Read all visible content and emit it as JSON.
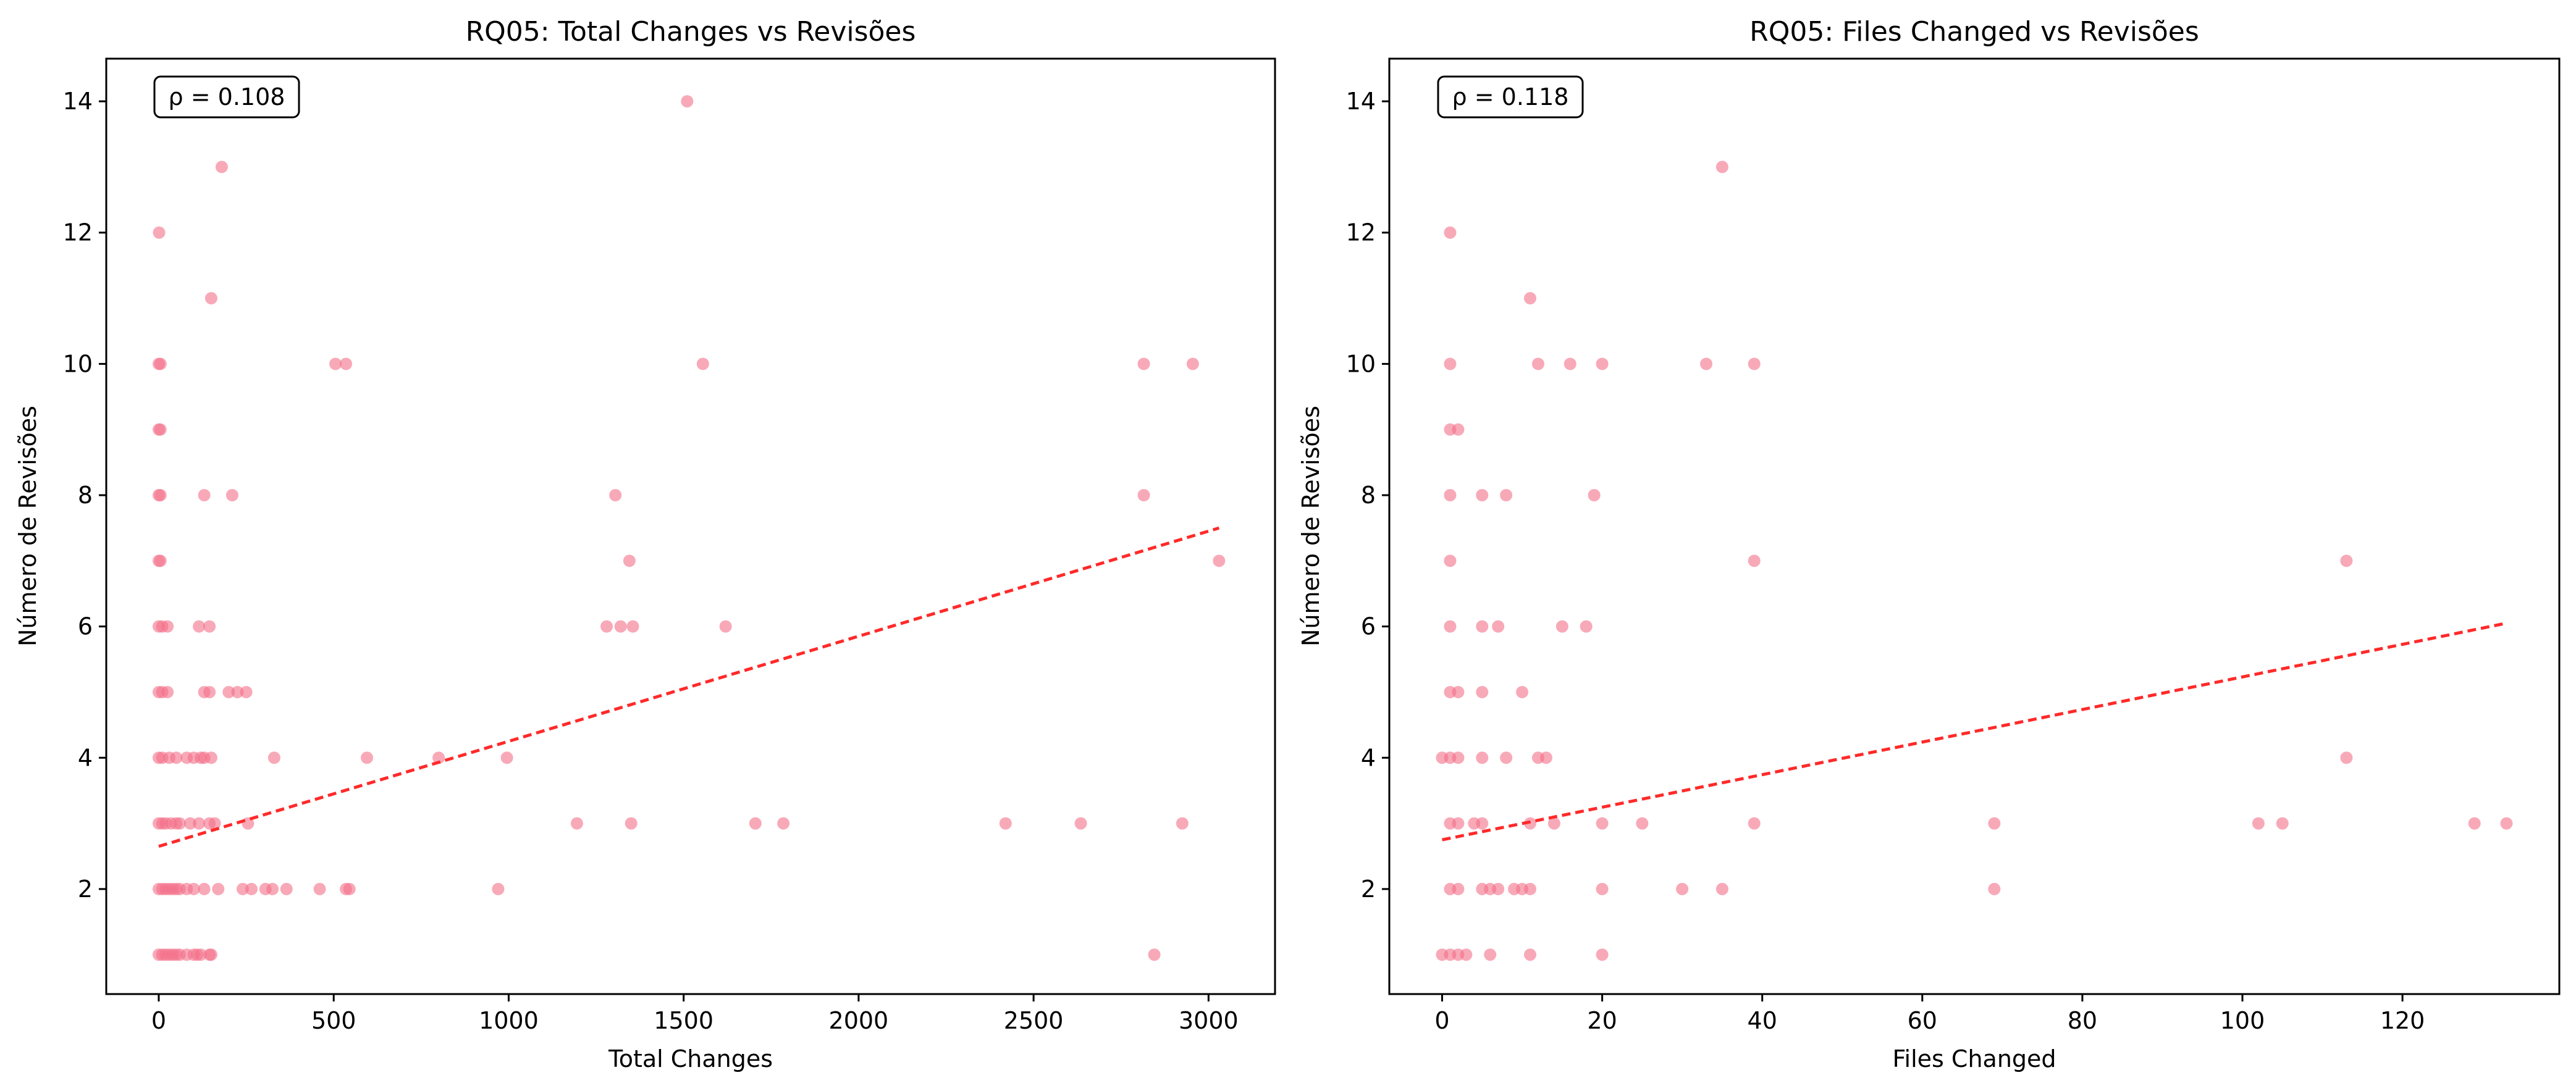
{
  "colors": {
    "point": "#f47088",
    "trend": "#ff2a2a",
    "axis": "#000000"
  },
  "chart_data": [
    {
      "type": "scatter",
      "title": "RQ05: Total Changes vs Revisões",
      "xlabel": "Total Changes",
      "ylabel": "Número de Revisões",
      "xlim": [
        -150,
        3190
      ],
      "ylim": [
        0.4,
        14.65
      ],
      "xticks": [
        0,
        500,
        1000,
        1500,
        2000,
        2500,
        3000
      ],
      "xtick_labels": [
        "0",
        "500",
        "1000",
        "1500",
        "2000",
        "2500",
        "3000"
      ],
      "yticks": [
        2,
        4,
        6,
        8,
        10,
        12,
        14
      ],
      "ytick_labels": [
        "2",
        "4",
        "6",
        "8",
        "10",
        "12",
        "14"
      ],
      "annotation": "ρ = 0.108",
      "legend": "none",
      "grid": false,
      "trend_line": {
        "x": [
          0,
          3030
        ],
        "y": [
          2.65,
          7.5
        ]
      },
      "points": [
        [
          1,
          12
        ],
        [
          180,
          13
        ],
        [
          1510,
          14
        ],
        [
          150,
          11
        ],
        [
          0,
          10
        ],
        [
          5,
          10
        ],
        [
          505,
          10
        ],
        [
          535,
          10
        ],
        [
          1555,
          10
        ],
        [
          2815,
          10
        ],
        [
          2955,
          10
        ],
        [
          0,
          9
        ],
        [
          5,
          9
        ],
        [
          0,
          8
        ],
        [
          5,
          8
        ],
        [
          130,
          8
        ],
        [
          210,
          8
        ],
        [
          1305,
          8
        ],
        [
          2815,
          8
        ],
        [
          0,
          7
        ],
        [
          5,
          7
        ],
        [
          1345,
          7
        ],
        [
          3030,
          7
        ],
        [
          0,
          6
        ],
        [
          10,
          6
        ],
        [
          25,
          6
        ],
        [
          115,
          6
        ],
        [
          145,
          6
        ],
        [
          1280,
          6
        ],
        [
          1320,
          6
        ],
        [
          1355,
          6
        ],
        [
          1620,
          6
        ],
        [
          0,
          5
        ],
        [
          10,
          5
        ],
        [
          25,
          5
        ],
        [
          130,
          5
        ],
        [
          145,
          5
        ],
        [
          200,
          5
        ],
        [
          225,
          5
        ],
        [
          250,
          5
        ],
        [
          0,
          4
        ],
        [
          10,
          4
        ],
        [
          30,
          4
        ],
        [
          50,
          4
        ],
        [
          80,
          4
        ],
        [
          100,
          4
        ],
        [
          120,
          4
        ],
        [
          130,
          4
        ],
        [
          150,
          4
        ],
        [
          330,
          4
        ],
        [
          595,
          4
        ],
        [
          800,
          4
        ],
        [
          995,
          4
        ],
        [
          0,
          3
        ],
        [
          10,
          3
        ],
        [
          20,
          3
        ],
        [
          35,
          3
        ],
        [
          50,
          3
        ],
        [
          60,
          3
        ],
        [
          90,
          3
        ],
        [
          115,
          3
        ],
        [
          145,
          3
        ],
        [
          160,
          3
        ],
        [
          255,
          3
        ],
        [
          1195,
          3
        ],
        [
          1350,
          3
        ],
        [
          1705,
          3
        ],
        [
          1785,
          3
        ],
        [
          2420,
          3
        ],
        [
          2635,
          3
        ],
        [
          2925,
          3
        ],
        [
          0,
          2
        ],
        [
          10,
          2
        ],
        [
          20,
          2
        ],
        [
          30,
          2
        ],
        [
          40,
          2
        ],
        [
          50,
          2
        ],
        [
          60,
          2
        ],
        [
          80,
          2
        ],
        [
          100,
          2
        ],
        [
          130,
          2
        ],
        [
          170,
          2
        ],
        [
          240,
          2
        ],
        [
          265,
          2
        ],
        [
          305,
          2
        ],
        [
          325,
          2
        ],
        [
          365,
          2
        ],
        [
          460,
          2
        ],
        [
          535,
          2
        ],
        [
          545,
          2
        ],
        [
          970,
          2
        ],
        [
          0,
          1
        ],
        [
          10,
          1
        ],
        [
          20,
          1
        ],
        [
          30,
          1
        ],
        [
          40,
          1
        ],
        [
          50,
          1
        ],
        [
          60,
          1
        ],
        [
          80,
          1
        ],
        [
          100,
          1
        ],
        [
          110,
          1
        ],
        [
          120,
          1
        ],
        [
          145,
          1
        ],
        [
          150,
          1
        ],
        [
          2845,
          1
        ]
      ]
    },
    {
      "type": "scatter",
      "title": "RQ05: Files Changed vs Revisões",
      "xlabel": "Files Changed",
      "ylabel": "Número de Revisões",
      "xlim": [
        -6.6,
        139.6
      ],
      "ylim": [
        0.4,
        14.65
      ],
      "xticks": [
        0,
        20,
        40,
        60,
        80,
        100,
        120
      ],
      "xtick_labels": [
        "0",
        "20",
        "40",
        "60",
        "80",
        "100",
        "120"
      ],
      "yticks": [
        2,
        4,
        6,
        8,
        10,
        12,
        14
      ],
      "ytick_labels": [
        "2",
        "4",
        "6",
        "8",
        "10",
        "12",
        "14"
      ],
      "annotation": "ρ = 0.118",
      "legend": "none",
      "grid": false,
      "trend_line": {
        "x": [
          0,
          133
        ],
        "y": [
          2.75,
          6.05
        ]
      },
      "points": [
        [
          1,
          12
        ],
        [
          35,
          13
        ],
        [
          11,
          11
        ],
        [
          1,
          10
        ],
        [
          12,
          10
        ],
        [
          16,
          10
        ],
        [
          20,
          10
        ],
        [
          33,
          10
        ],
        [
          39,
          10
        ],
        [
          1,
          9
        ],
        [
          2,
          9
        ],
        [
          1,
          8
        ],
        [
          5,
          8
        ],
        [
          8,
          8
        ],
        [
          19,
          8
        ],
        [
          1,
          7
        ],
        [
          39,
          7
        ],
        [
          113,
          7
        ],
        [
          1,
          6
        ],
        [
          5,
          6
        ],
        [
          7,
          6
        ],
        [
          15,
          6
        ],
        [
          18,
          6
        ],
        [
          1,
          5
        ],
        [
          2,
          5
        ],
        [
          5,
          5
        ],
        [
          10,
          5
        ],
        [
          0,
          4
        ],
        [
          1,
          4
        ],
        [
          2,
          4
        ],
        [
          5,
          4
        ],
        [
          8,
          4
        ],
        [
          12,
          4
        ],
        [
          13,
          4
        ],
        [
          113,
          4
        ],
        [
          1,
          3
        ],
        [
          2,
          3
        ],
        [
          4,
          3
        ],
        [
          5,
          3
        ],
        [
          11,
          3
        ],
        [
          14,
          3
        ],
        [
          20,
          3
        ],
        [
          25,
          3
        ],
        [
          39,
          3
        ],
        [
          69,
          3
        ],
        [
          102,
          3
        ],
        [
          105,
          3
        ],
        [
          129,
          3
        ],
        [
          133,
          3
        ],
        [
          1,
          2
        ],
        [
          2,
          2
        ],
        [
          5,
          2
        ],
        [
          6,
          2
        ],
        [
          7,
          2
        ],
        [
          9,
          2
        ],
        [
          10,
          2
        ],
        [
          11,
          2
        ],
        [
          20,
          2
        ],
        [
          30,
          2
        ],
        [
          35,
          2
        ],
        [
          69,
          2
        ],
        [
          0,
          1
        ],
        [
          1,
          1
        ],
        [
          2,
          1
        ],
        [
          3,
          1
        ],
        [
          6,
          1
        ],
        [
          11,
          1
        ],
        [
          20,
          1
        ]
      ]
    }
  ]
}
